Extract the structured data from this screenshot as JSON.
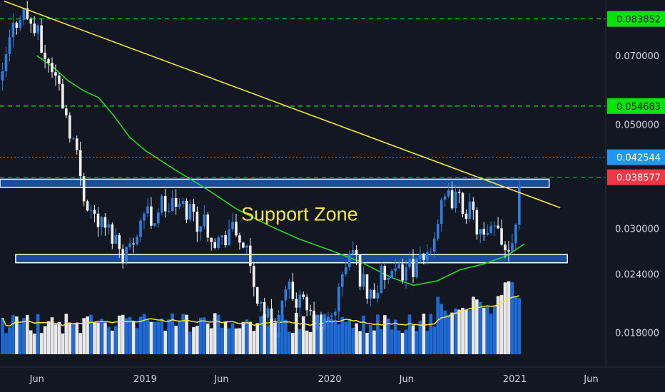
{
  "chart_data": {
    "type": "candlestick",
    "x_labels": [
      "Jun",
      "2019",
      "Jun",
      "2020",
      "Jun",
      "2021",
      "Jun"
    ],
    "x_label_dates": [
      "2018-06-01",
      "2019-01-01",
      "2019-06-01",
      "2020-01-01",
      "2020-06-01",
      "2021-01-01",
      "2021-06-01"
    ],
    "y_ticks": [
      "0.070000",
      "0.050000",
      "0.030000",
      "0.024000",
      "0.018000"
    ],
    "y_tick_values": [
      0.07,
      0.05,
      0.03,
      0.024,
      0.018
    ],
    "y_scale": "log",
    "y_range": [
      0.0152,
      0.092
    ],
    "x_range": [
      "2018-03-20",
      "2021-06-30"
    ],
    "price_badges": [
      {
        "text": "0.083852",
        "value": 0.083852,
        "color": "#00e600"
      },
      {
        "text": "0.054683",
        "value": 0.054683,
        "color": "#00e600"
      },
      {
        "text": "0.042544",
        "value": 0.042544,
        "color": "#2196f3"
      },
      {
        "text": "0.038577",
        "value": 0.038577,
        "color": "#f23645"
      }
    ],
    "horizontal_lines": [
      {
        "value": 0.083852,
        "style": "dashed",
        "color": "#00e600"
      },
      {
        "value": 0.054683,
        "style": "dashed",
        "color": "#00e600"
      },
      {
        "value": 0.042544,
        "style": "dotted",
        "color": "#2196f3"
      },
      {
        "value": 0.038577,
        "style": "dashed",
        "color": "#f23645"
      }
    ],
    "zones": [
      {
        "from_date": "2018-03-20",
        "to_date": "2021-03-10",
        "low": 0.0367,
        "high": 0.0382
      },
      {
        "from_date": "2018-04-20",
        "to_date": "2021-04-15",
        "low": 0.02535,
        "high": 0.0264
      }
    ],
    "trendline": {
      "start": [
        "2018-03-28",
        0.0915
      ],
      "end": [
        "2021-04-01",
        0.0332
      ],
      "color": "#f5e642"
    },
    "moving_average": {
      "color": "#2bd62b",
      "points": [
        [
          "2018-06-01",
          0.07
        ],
        [
          "2018-07-01",
          0.0665
        ],
        [
          "2018-08-01",
          0.062
        ],
        [
          "2018-09-01",
          0.059
        ],
        [
          "2018-10-01",
          0.057
        ],
        [
          "2018-11-01",
          0.052
        ],
        [
          "2018-12-01",
          0.047
        ],
        [
          "2019-01-01",
          0.044
        ],
        [
          "2019-03-01",
          0.04
        ],
        [
          "2019-05-01",
          0.0365
        ],
        [
          "2019-07-01",
          0.033
        ],
        [
          "2019-09-01",
          0.0305
        ],
        [
          "2019-11-01",
          0.0285
        ],
        [
          "2020-01-01",
          0.027
        ],
        [
          "2020-03-01",
          0.0255
        ],
        [
          "2020-05-01",
          0.0236
        ],
        [
          "2020-06-15",
          0.0227
        ],
        [
          "2020-08-01",
          0.0232
        ],
        [
          "2020-09-15",
          0.0245
        ],
        [
          "2020-11-01",
          0.0252
        ],
        [
          "2020-12-15",
          0.0262
        ],
        [
          "2021-01-20",
          0.0278
        ]
      ]
    },
    "annotation": {
      "text": "Support Zone",
      "date": "2019-07-10",
      "value": 0.0312
    },
    "close_series": [
      [
        "2018-03-25",
        0.062
      ],
      [
        "2018-04-01",
        0.07
      ],
      [
        "2018-04-15",
        0.08
      ],
      [
        "2018-05-01",
        0.088
      ],
      [
        "2018-05-15",
        0.084
      ],
      [
        "2018-06-01",
        0.078
      ],
      [
        "2018-06-15",
        0.07
      ],
      [
        "2018-07-01",
        0.066
      ],
      [
        "2018-07-15",
        0.06
      ],
      [
        "2018-08-01",
        0.051
      ],
      [
        "2018-08-15",
        0.045
      ],
      [
        "2018-09-01",
        0.036
      ],
      [
        "2018-09-15",
        0.033
      ],
      [
        "2018-10-01",
        0.031
      ],
      [
        "2018-10-15",
        0.03
      ],
      [
        "2018-11-01",
        0.029
      ],
      [
        "2018-11-15",
        0.027
      ],
      [
        "2018-12-01",
        0.027
      ],
      [
        "2018-12-15",
        0.03
      ],
      [
        "2019-01-01",
        0.033
      ],
      [
        "2019-01-15",
        0.031
      ],
      [
        "2019-02-01",
        0.034
      ],
      [
        "2019-02-15",
        0.033
      ],
      [
        "2019-03-01",
        0.034
      ],
      [
        "2019-03-15",
        0.033
      ],
      [
        "2019-04-01",
        0.033
      ],
      [
        "2019-04-15",
        0.031
      ],
      [
        "2019-05-01",
        0.031
      ],
      [
        "2019-05-15",
        0.029
      ],
      [
        "2019-06-01",
        0.028
      ],
      [
        "2019-06-15",
        0.03
      ],
      [
        "2019-07-01",
        0.029
      ],
      [
        "2019-07-15",
        0.028
      ],
      [
        "2019-08-01",
        0.023
      ],
      [
        "2019-08-15",
        0.021
      ],
      [
        "2019-09-01",
        0.0195
      ],
      [
        "2019-09-15",
        0.0185
      ],
      [
        "2019-10-01",
        0.021
      ],
      [
        "2019-10-15",
        0.022
      ],
      [
        "2019-11-01",
        0.021
      ],
      [
        "2019-11-15",
        0.02
      ],
      [
        "2019-12-01",
        0.019
      ],
      [
        "2019-12-15",
        0.0185
      ],
      [
        "2020-01-01",
        0.019
      ],
      [
        "2020-01-15",
        0.021
      ],
      [
        "2020-02-01",
        0.025
      ],
      [
        "2020-02-15",
        0.027
      ],
      [
        "2020-03-01",
        0.024
      ],
      [
        "2020-03-15",
        0.022
      ],
      [
        "2020-04-01",
        0.022
      ],
      [
        "2020-04-15",
        0.024
      ],
      [
        "2020-05-01",
        0.023
      ],
      [
        "2020-05-15",
        0.024
      ],
      [
        "2020-06-01",
        0.025
      ],
      [
        "2020-06-15",
        0.025
      ],
      [
        "2020-07-01",
        0.025
      ],
      [
        "2020-07-15",
        0.027
      ],
      [
        "2020-08-01",
        0.031
      ],
      [
        "2020-08-15",
        0.034
      ],
      [
        "2020-09-01",
        0.035
      ],
      [
        "2020-09-15",
        0.034
      ],
      [
        "2020-10-01",
        0.033
      ],
      [
        "2020-10-15",
        0.031
      ],
      [
        "2020-11-01",
        0.028
      ],
      [
        "2020-11-15",
        0.029
      ],
      [
        "2020-12-01",
        0.03
      ],
      [
        "2020-12-15",
        0.027
      ],
      [
        "2021-01-01",
        0.03
      ],
      [
        "2021-01-15",
        0.0425
      ]
    ],
    "volume": {
      "ma_color": "#f5e642",
      "up_color": "#1e6ad6",
      "down_color": "#e8e8e8"
    },
    "grid": false,
    "legend": "none"
  }
}
